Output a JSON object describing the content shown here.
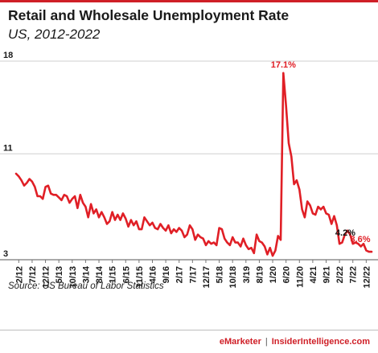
{
  "header": {
    "title": "Retail and Wholesale Unemployment Rate",
    "subtitle": "US, 2012-2022"
  },
  "source": "Source: US Bureau of Labor Statistics",
  "footer": {
    "brand": "eMarketer",
    "separator": "|",
    "site": "InsiderIntelligence.com"
  },
  "colors": {
    "line": "#e01f26",
    "accent": "#cf1f27",
    "grid": "#cfcfcf"
  },
  "chart_data": {
    "type": "line",
    "title": "Retail and Wholesale Unemployment Rate",
    "subtitle": "US, 2012-2022",
    "xlabel": "",
    "ylabel": "",
    "ylim": [
      3,
      18
    ],
    "yticks": [
      3,
      11,
      18
    ],
    "grid": true,
    "x_tick_labels": [
      "2/12",
      "7/12",
      "12/12",
      "5/13",
      "10/13",
      "3/14",
      "8/14",
      "1/15",
      "6/15",
      "11/15",
      "4/16",
      "9/16",
      "2/17",
      "7/17",
      "12/17",
      "5/18",
      "10/18",
      "3/19",
      "8/19",
      "1/20",
      "6/20",
      "11/20",
      "4/21",
      "9/21",
      "2/22",
      "7/22",
      "12/22"
    ],
    "annotations": [
      {
        "text": "17.1%",
        "x_index": 100,
        "value": 17.1,
        "color": "#e01f26"
      },
      {
        "text": "4.2%",
        "x_index": 122,
        "value": 4.2,
        "color": "#111111"
      },
      {
        "text": "3.6%",
        "x_index": 130,
        "value": 3.6,
        "color": "#e01f26"
      }
    ],
    "series": [
      {
        "x_start": "1/12",
        "x_step": "1 month",
        "values": [
          9.5,
          9.3,
          9.0,
          8.6,
          8.8,
          9.1,
          8.9,
          8.5,
          7.8,
          7.8,
          7.6,
          8.5,
          8.6,
          8.0,
          7.9,
          7.9,
          7.7,
          7.5,
          7.9,
          7.8,
          7.3,
          7.6,
          7.8,
          6.9,
          7.9,
          7.3,
          7.0,
          6.2,
          7.2,
          6.5,
          6.8,
          6.2,
          6.6,
          6.2,
          5.7,
          5.9,
          6.6,
          6.0,
          6.4,
          6.0,
          6.5,
          6.1,
          5.5,
          6.0,
          5.6,
          5.9,
          5.3,
          5.3,
          6.2,
          5.9,
          5.6,
          5.8,
          5.4,
          5.3,
          5.7,
          5.4,
          5.2,
          5.6,
          5.0,
          5.3,
          5.1,
          5.4,
          5.2,
          4.7,
          4.9,
          5.6,
          5.3,
          4.5,
          4.9,
          4.7,
          4.6,
          4.1,
          4.4,
          4.2,
          4.3,
          4.1,
          5.4,
          5.3,
          4.6,
          4.3,
          4.1,
          4.7,
          4.3,
          4.3,
          4.0,
          4.6,
          4.1,
          3.8,
          3.9,
          3.5,
          4.9,
          4.4,
          4.3,
          4.0,
          3.4,
          3.9,
          3.3,
          3.7,
          4.8,
          4.5,
          17.1,
          14.6,
          11.8,
          10.8,
          8.7,
          9.0,
          8.3,
          6.8,
          6.2,
          7.4,
          7.1,
          6.5,
          6.4,
          7.0,
          6.8,
          7.0,
          6.5,
          6.4,
          5.7,
          6.3,
          5.6,
          4.2,
          4.3,
          4.9,
          5.2,
          4.9,
          4.2,
          4.3,
          4.2,
          4.0,
          4.2,
          3.7,
          3.6,
          3.6
        ]
      }
    ]
  }
}
